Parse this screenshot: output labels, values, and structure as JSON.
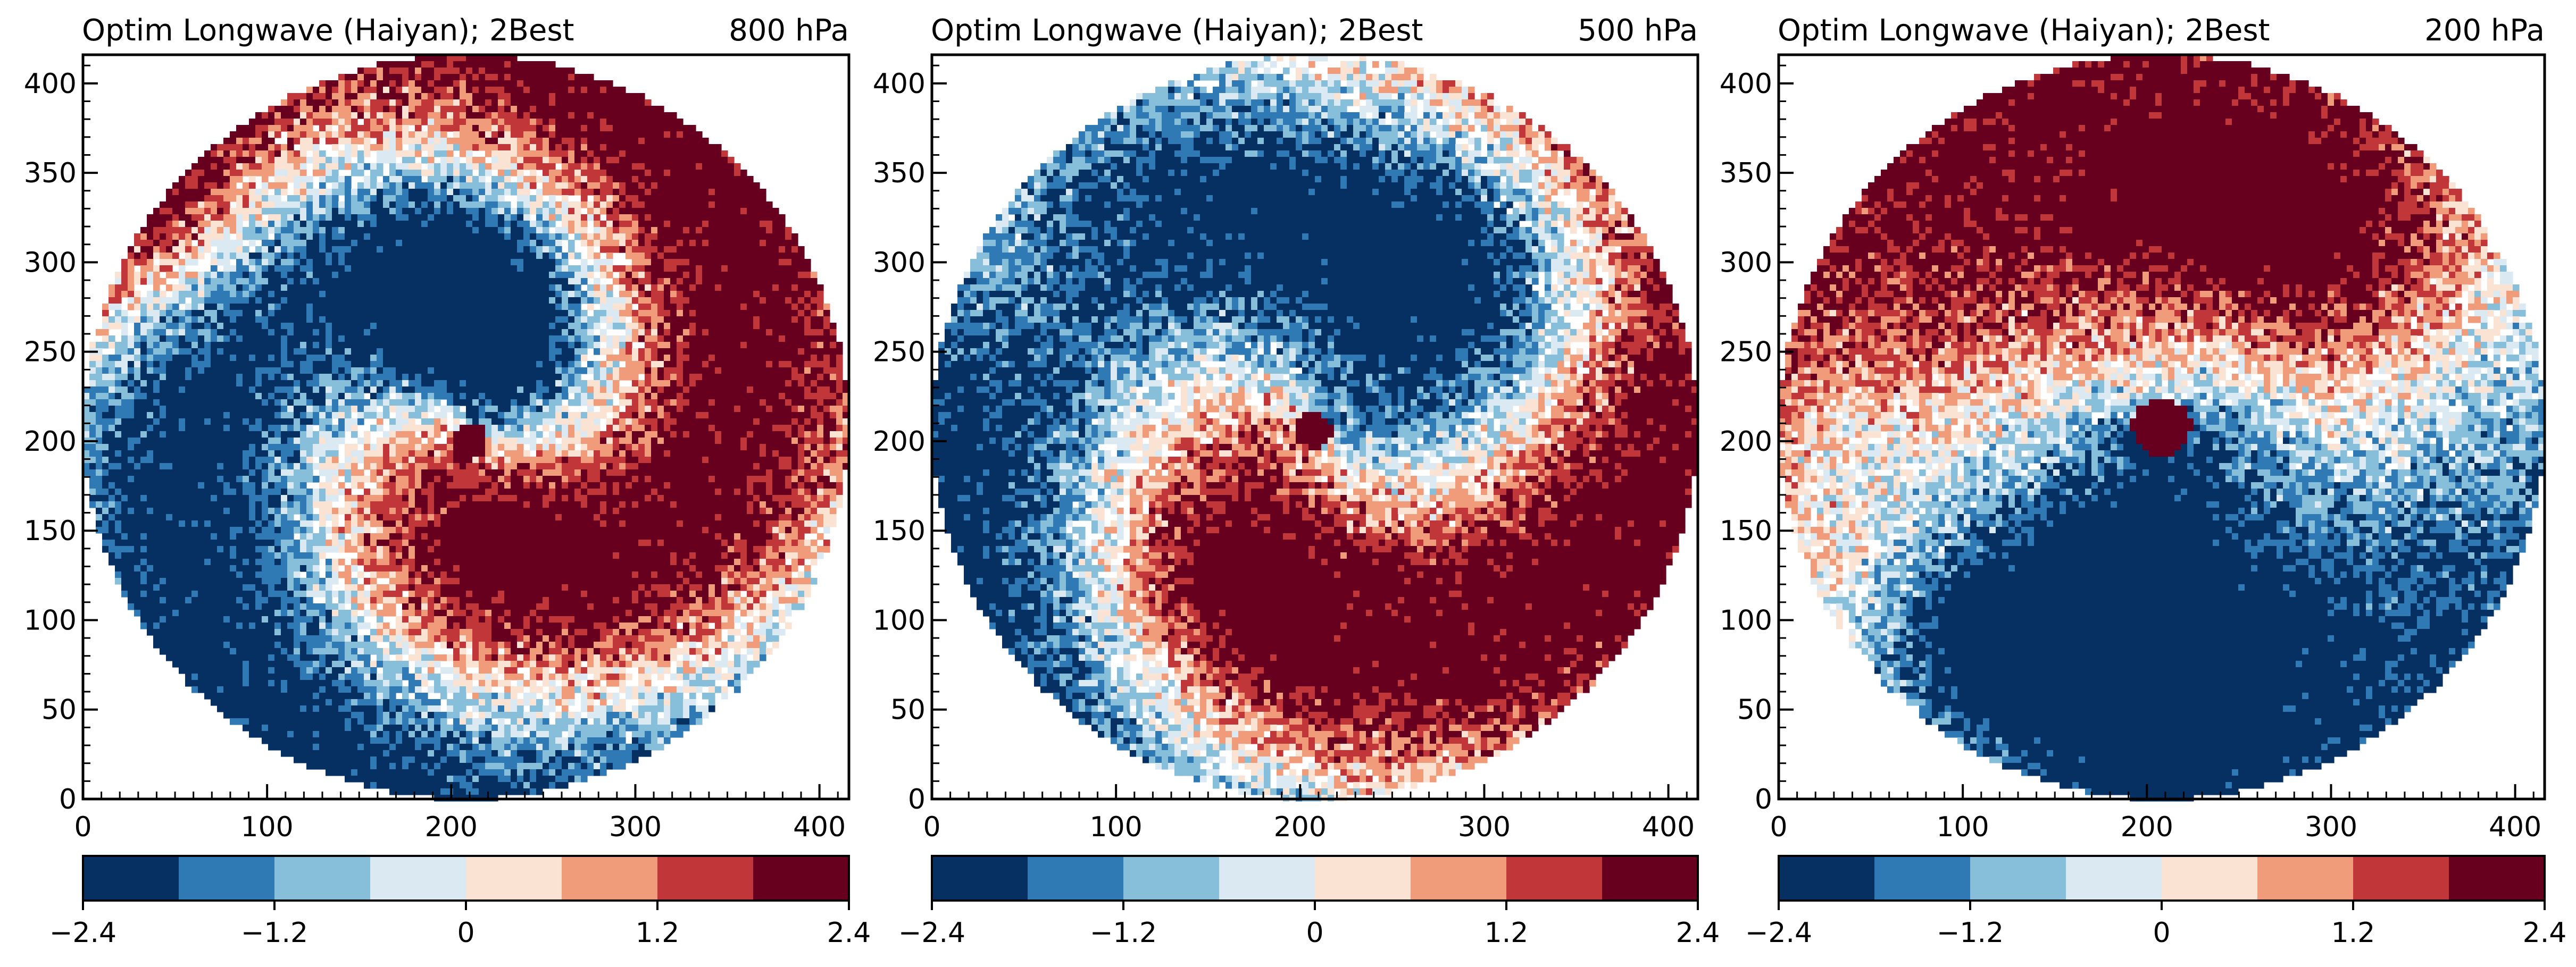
{
  "palette": [
    "#053061",
    "#2f79b5",
    "#87beda",
    "#dae9f2",
    "#fbe3d4",
    "#f09c7b",
    "#c13639",
    "#67001f"
  ],
  "chart_data": [
    {
      "type": "heatmap",
      "title": "Optim Longwave (Haiyan); 2Best",
      "level": "800 hPa",
      "xlabel": "",
      "ylabel": "",
      "xlim": [
        0,
        416
      ],
      "ylim": [
        0,
        416
      ],
      "xticks": [
        0,
        100,
        200,
        300,
        400
      ],
      "yticks": [
        0,
        50,
        100,
        150,
        200,
        250,
        300,
        350,
        400
      ],
      "colorbar": {
        "range": [
          -2.4,
          2.4
        ],
        "levels": 8,
        "ticks": [
          "−2.4",
          "−1.2",
          "0",
          "1.2",
          "2.4"
        ]
      },
      "center": [
        208,
        208
      ],
      "radius": 208,
      "spiral_phase": 215,
      "spiral_twist": 70,
      "amplitude": 2.4,
      "features": [
        {
          "type": "blob",
          "x": 210,
          "y": 270,
          "r": 55,
          "value": -2.6
        },
        {
          "type": "blob",
          "x": 230,
          "y": 155,
          "r": 50,
          "value": 1.4
        },
        {
          "type": "blob",
          "x": 40,
          "y": 330,
          "r": 70,
          "value": 1.8
        }
      ],
      "eye": {
        "x": 210,
        "y": 200,
        "r": 10,
        "value": 2.5
      }
    },
    {
      "type": "heatmap",
      "title": "Optim Longwave (Haiyan); 2Best",
      "level": "500 hPa",
      "xlabel": "",
      "ylabel": "",
      "xlim": [
        0,
        416
      ],
      "ylim": [
        0,
        416
      ],
      "xticks": [
        0,
        100,
        200,
        300,
        400
      ],
      "yticks": [
        0,
        50,
        100,
        150,
        200,
        250,
        300,
        350,
        400
      ],
      "colorbar": {
        "range": [
          -2.4,
          2.4
        ],
        "levels": 8,
        "ticks": [
          "−2.4",
          "−1.2",
          "0",
          "1.2",
          "2.4"
        ]
      },
      "center": [
        208,
        208
      ],
      "radius": 208,
      "spiral_phase": 200,
      "spiral_twist": 55,
      "amplitude": 2.5,
      "features": [
        {
          "type": "blob",
          "x": 310,
          "y": 300,
          "r": 90,
          "value": -1.8
        },
        {
          "type": "blob",
          "x": 40,
          "y": 300,
          "r": 70,
          "value": 1.3
        },
        {
          "type": "blob",
          "x": 170,
          "y": 120,
          "r": 60,
          "value": 1.1
        }
      ],
      "eye": {
        "x": 207,
        "y": 206,
        "r": 10,
        "value": 2.5
      }
    },
    {
      "type": "heatmap",
      "title": "Optim Longwave (Haiyan); 2Best",
      "level": "200 hPa",
      "xlabel": "",
      "ylabel": "",
      "xlim": [
        0,
        416
      ],
      "ylim": [
        0,
        416
      ],
      "xticks": [
        0,
        100,
        200,
        300,
        400
      ],
      "yticks": [
        0,
        50,
        100,
        150,
        200,
        250,
        300,
        350,
        400
      ],
      "colorbar": {
        "range": [
          -2.4,
          2.4
        ],
        "levels": 8,
        "ticks": [
          "−2.4",
          "−1.2",
          "0",
          "1.2",
          "2.4"
        ]
      },
      "center": [
        208,
        208
      ],
      "radius": 208,
      "spiral_phase": 75,
      "spiral_twist": 15,
      "amplitude": 2.2,
      "features": [
        {
          "type": "blob",
          "x": 290,
          "y": 320,
          "r": 80,
          "value": 1.6
        },
        {
          "type": "blob",
          "x": 180,
          "y": 100,
          "r": 85,
          "value": -1.8
        },
        {
          "type": "blob",
          "x": 100,
          "y": 90,
          "r": 40,
          "value": -1.2
        },
        {
          "type": "blob",
          "x": 230,
          "y": 220,
          "r": 55,
          "value": -1.6
        },
        {
          "type": "blob",
          "x": 30,
          "y": 200,
          "r": 35,
          "value": -0.8
        }
      ],
      "eye": {
        "x": 208,
        "y": 208,
        "r": 16,
        "value": 2.3
      }
    }
  ]
}
